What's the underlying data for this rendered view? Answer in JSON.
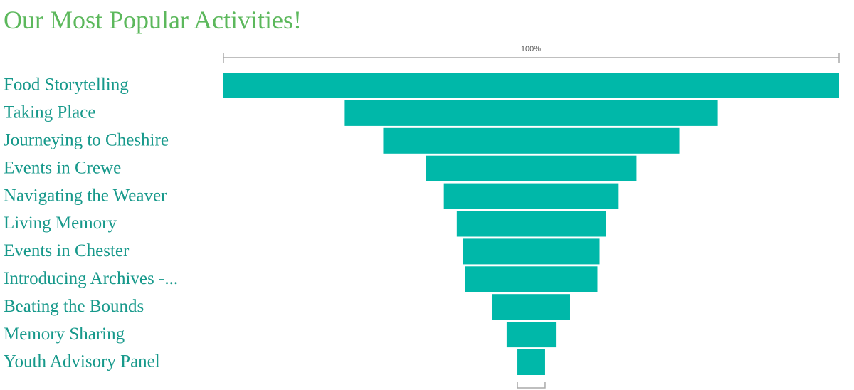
{
  "chart_data": {
    "type": "funnel",
    "title": "Our Most Popular Activities!",
    "top_label": "100%",
    "categories": [
      "Food Storytelling",
      "Taking Place",
      "Journeying to Cheshire",
      "Events in Crewe",
      "Navigating the Weaver",
      "Living Memory",
      "Events in Chester",
      "Introducing Archives -...",
      "Beating the Bounds",
      "Memory Sharing",
      "Youth Advisory Panel"
    ],
    "values": [
      100,
      60.6,
      48.1,
      34.2,
      28.4,
      24.2,
      22.2,
      21.5,
      12.6,
      8,
      4.5
    ],
    "color": "#00b8a9",
    "xlim": [
      0,
      100
    ]
  }
}
